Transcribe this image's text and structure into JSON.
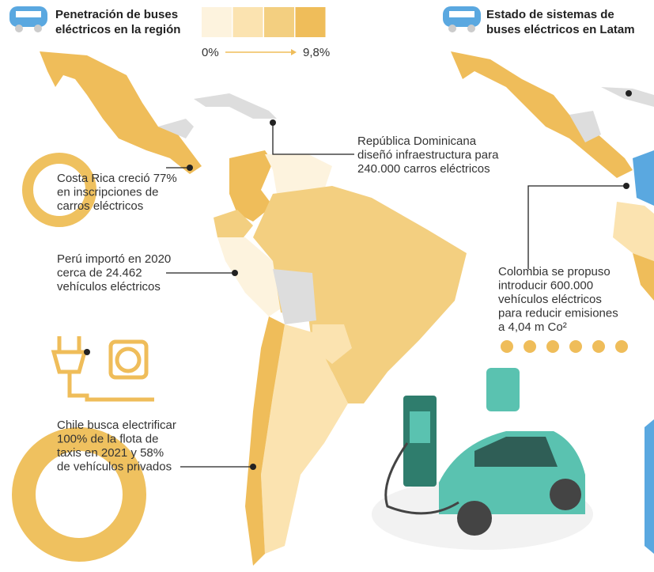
{
  "left_panel": {
    "title_lines": [
      "Penetración de buses",
      "eléctricos en la región"
    ],
    "legend": {
      "colors": [
        "#fdf3de",
        "#fbe3b0",
        "#f3cf80",
        "#efbd5a"
      ],
      "min_label": "0%",
      "max_label": "9,8%"
    }
  },
  "right_panel": {
    "title_lines": [
      "Estado de sistemas de",
      "buses eléctricos en Latam"
    ]
  },
  "annotations": [
    {
      "lines": [
        "Costa Rica creció 77%",
        "en inscripciones de",
        "carros eléctricos"
      ]
    },
    {
      "lines": [
        "República Dominicana",
        "diseñó infraestructura para",
        "240.000 carros eléctricos"
      ]
    },
    {
      "lines": [
        "Perú importó en 2020",
        "cerca de 24.462",
        "vehículos eléctricos"
      ]
    },
    {
      "lines": [
        "Chile busca electrificar",
        "100% de la flota de",
        "taxis en 2021 y 58%",
        "de vehículos privados"
      ]
    },
    {
      "lines": [
        "Colombia se propuso",
        "introducir 600.000",
        "vehículos eléctricos",
        "para reducir emisiones",
        "a 4,04 m Co²"
      ]
    }
  ]
}
